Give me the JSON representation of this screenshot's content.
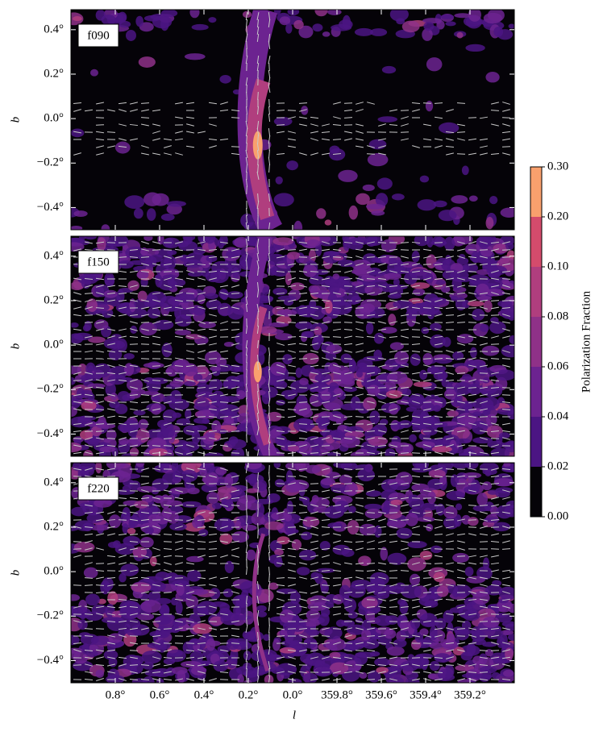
{
  "chart_data": {
    "type": "map",
    "panels": [
      "f090",
      "f150",
      "f220"
    ],
    "xlabel": "l",
    "ylabel": "b",
    "xlim": [
      1.0,
      359.0
    ],
    "xticks": [
      {
        "value": 0.8,
        "label": "0.8°"
      },
      {
        "value": 0.6,
        "label": "0.6°"
      },
      {
        "value": 0.4,
        "label": "0.4°"
      },
      {
        "value": 0.2,
        "label": "0.2°"
      },
      {
        "value": 0.0,
        "label": "0.0°"
      },
      {
        "value": 359.8,
        "label": "359.8°"
      },
      {
        "value": 359.6,
        "label": "359.6°"
      },
      {
        "value": 359.4,
        "label": "359.4°"
      },
      {
        "value": 359.2,
        "label": "359.2°"
      }
    ],
    "ylim": [
      -0.5,
      0.49
    ],
    "yticks": [
      {
        "value": 0.4,
        "label": "0.4°"
      },
      {
        "value": 0.2,
        "label": "0.2°"
      },
      {
        "value": 0.0,
        "label": "0.0°"
      },
      {
        "value": -0.2,
        "label": "−0.2°"
      },
      {
        "value": -0.4,
        "label": "−0.4°"
      }
    ],
    "colorbar": {
      "label": "Polarization Fraction",
      "ticks": [
        {
          "value": 0,
          "label": "0.00"
        },
        {
          "value": 0.02,
          "label": "0.02"
        },
        {
          "value": 0.04,
          "label": "0.04"
        },
        {
          "value": 0.06,
          "label": "0.06"
        },
        {
          "value": 0.08,
          "label": "0.08"
        },
        {
          "value": 0.1,
          "label": "0.10"
        },
        {
          "value": 0.2,
          "label": "0.20"
        },
        {
          "value": 0.3,
          "label": "0.30"
        }
      ],
      "colors": [
        "#050308",
        "#4b1583",
        "#6c2390",
        "#8f3188",
        "#b03e7e",
        "#d44b6c",
        "#f9a06d"
      ]
    }
  }
}
